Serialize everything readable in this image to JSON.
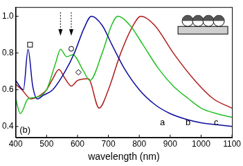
{
  "chart_data": {
    "type": "line",
    "x_label": "wavelength (nm)",
    "xlim": [
      400,
      1100
    ],
    "xticks": [
      400,
      500,
      600,
      700,
      800,
      900,
      1000,
      1100
    ],
    "ylim": [
      0.34,
      1.05
    ],
    "yticks": [
      0.4,
      0.6,
      0.8,
      {
        "value": 1,
        "label": "1.0"
      }
    ],
    "grid": false,
    "annotations": [
      {
        "text": "(b)",
        "x": 430,
        "y": 0.38
      },
      {
        "text": "a",
        "x": 875,
        "y": 0.42
      },
      {
        "text": "b",
        "x": 958,
        "y": 0.42
      },
      {
        "text": "c",
        "x": 1049,
        "y": 0.42
      }
    ],
    "series": [
      {
        "name": "a",
        "color": "#0b0b9e",
        "x": [
          400,
          425,
          440,
          455,
          470,
          490,
          520,
          560,
          590,
          620,
          645,
          680,
          710,
          750,
          800,
          850,
          900,
          950,
          1000,
          1050,
          1100
        ],
        "values": [
          0.65,
          0.6,
          0.82,
          0.62,
          0.55,
          0.57,
          0.6,
          0.7,
          0.8,
          0.93,
          1.0,
          0.95,
          0.85,
          0.72,
          0.6,
          0.52,
          0.47,
          0.44,
          0.42,
          0.41,
          0.4
        ]
      },
      {
        "name": "b",
        "color": "#22c022",
        "x": [
          400,
          415,
          440,
          470,
          500,
          530,
          545,
          565,
          585,
          620,
          640,
          680,
          710,
          730,
          770,
          810,
          860,
          910,
          960,
          1000,
          1050,
          1100
        ],
        "values": [
          0.55,
          0.47,
          0.55,
          0.56,
          0.6,
          0.75,
          0.82,
          0.78,
          0.79,
          0.7,
          0.65,
          0.8,
          0.95,
          1.0,
          0.95,
          0.85,
          0.72,
          0.62,
          0.55,
          0.5,
          0.47,
          0.45
        ]
      },
      {
        "name": "c",
        "color": "#b01c1c",
        "x": [
          400,
          420,
          450,
          480,
          500,
          520,
          540,
          560,
          580,
          600,
          635,
          670,
          700,
          740,
          780,
          805,
          850,
          910,
          980,
          1040,
          1100
        ],
        "values": [
          0.63,
          0.6,
          0.55,
          0.57,
          0.6,
          0.66,
          0.71,
          0.66,
          0.62,
          0.65,
          0.66,
          0.5,
          0.6,
          0.8,
          0.95,
          1.0,
          0.95,
          0.8,
          0.65,
          0.55,
          0.5
        ]
      }
    ]
  }
}
